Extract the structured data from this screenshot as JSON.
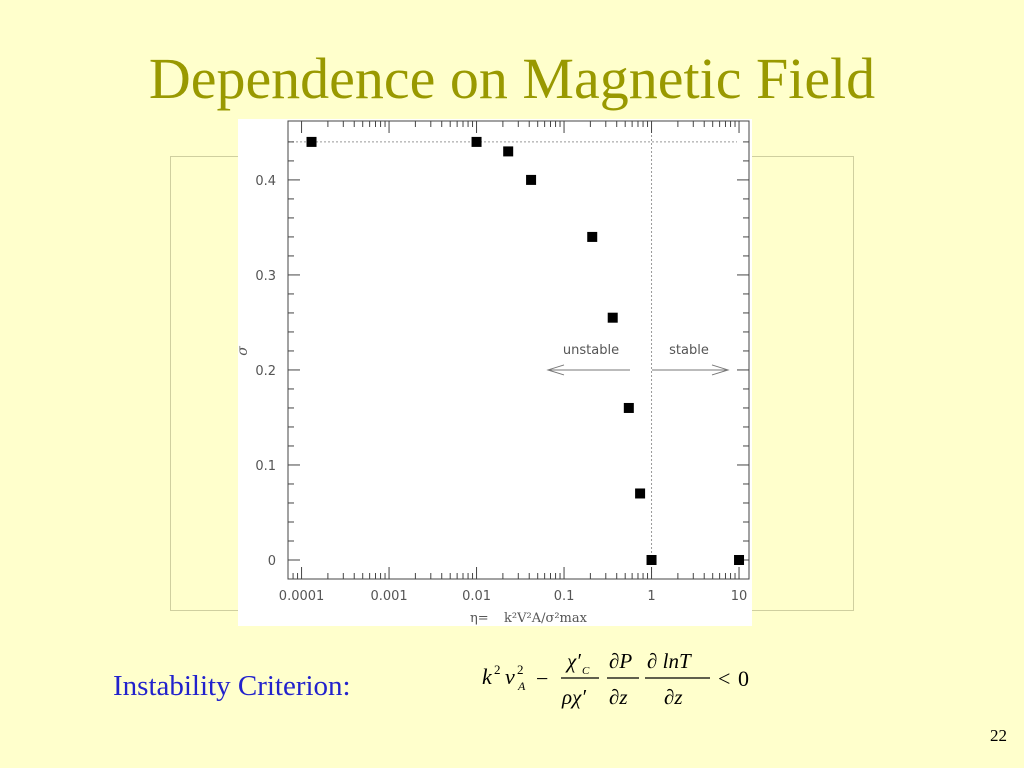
{
  "slide": {
    "title": "Dependence on Magnetic Field",
    "criterion_label": "Instability Criterion:",
    "page_number": "22"
  },
  "formula": {
    "k": "k",
    "k_sup": "2",
    "v": "v",
    "v_sup": "2",
    "v_sub": "A",
    "minus": "−",
    "chi_num": "χ′",
    "chi_num_sub": "C",
    "den1": "ρχ′",
    "dP": "∂P",
    "dz1": "∂z",
    "dlnT": "∂ lnT",
    "dz2": "∂z",
    "lt": "<",
    "zero": "0"
  },
  "chart_data": {
    "type": "scatter",
    "x_scale": "log",
    "xlim": [
      7e-05,
      13
    ],
    "ylim": [
      -0.02,
      0.462
    ],
    "x_ticks": [
      0.0001,
      0.001,
      0.01,
      0.1,
      1,
      10
    ],
    "x_tick_labels": [
      "0.0001",
      "0.001",
      "0.01",
      "0.1",
      "1",
      "10"
    ],
    "y_ticks": [
      0,
      0.1,
      0.2,
      0.3,
      0.4
    ],
    "y_tick_labels": [
      "0",
      "0.1",
      "0.2",
      "0.3",
      "0.4"
    ],
    "xlabel_lhs": "η=",
    "xlabel_rhs": "k²V²A/σ²max",
    "ylabel": "σ",
    "reference_lines": {
      "horizontal_y": 0.44,
      "vertical_x": 1
    },
    "annotations": {
      "unstable": "unstable",
      "stable": "stable"
    },
    "points": [
      {
        "x": 0.00013,
        "y": 0.44
      },
      {
        "x": 0.01,
        "y": 0.44
      },
      {
        "x": 0.023,
        "y": 0.43
      },
      {
        "x": 0.042,
        "y": 0.4
      },
      {
        "x": 0.21,
        "y": 0.34
      },
      {
        "x": 0.36,
        "y": 0.255
      },
      {
        "x": 0.55,
        "y": 0.16
      },
      {
        "x": 0.74,
        "y": 0.07
      },
      {
        "x": 1.0,
        "y": 0.0
      },
      {
        "x": 10.0,
        "y": 0.0
      }
    ],
    "colors": {
      "marker": "#000000",
      "axis": "#444444",
      "text": "#555555",
      "title": "#999900",
      "criterion": "#2222cc"
    }
  }
}
